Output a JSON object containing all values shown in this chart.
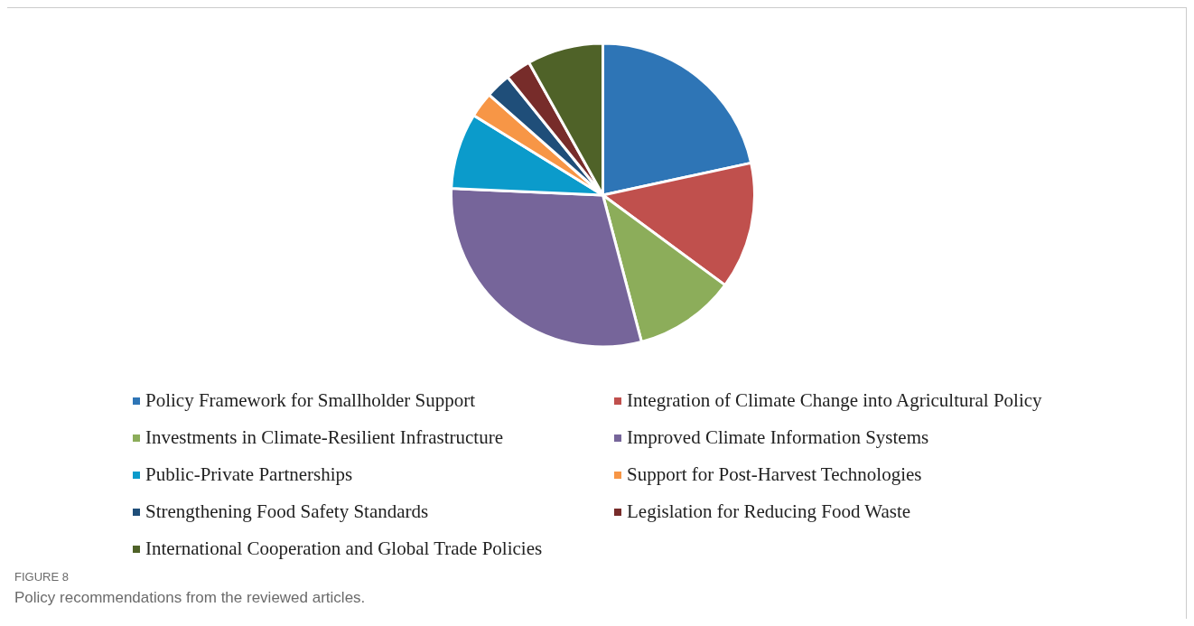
{
  "chart_data": {
    "type": "pie",
    "categories": [
      "Policy Framework for Smallholder Support",
      "Integration of Climate Change into Agricultural Policy",
      "Investments in Climate-Resilient Infrastructure",
      "Improved Climate Information Systems",
      "Public-Private Partnerships",
      "Support for Post-Harvest Technologies",
      "Strengthening Food Safety Standards",
      "Legislation for Reducing Food Waste",
      "International Cooperation and Global Trade Policies"
    ],
    "values": [
      21.6,
      13.5,
      10.8,
      29.8,
      8.1,
      2.7,
      2.7,
      2.7,
      8.1
    ],
    "colors": [
      "#2e75b6",
      "#c0504d",
      "#8cad5a",
      "#76659a",
      "#0b9bcb",
      "#f79646",
      "#1f4e79",
      "#772c2a",
      "#4f6228"
    ],
    "legend": "bottom",
    "annotations": [
      "FIGURE 8",
      "Policy recommendations from the reviewed articles."
    ]
  }
}
